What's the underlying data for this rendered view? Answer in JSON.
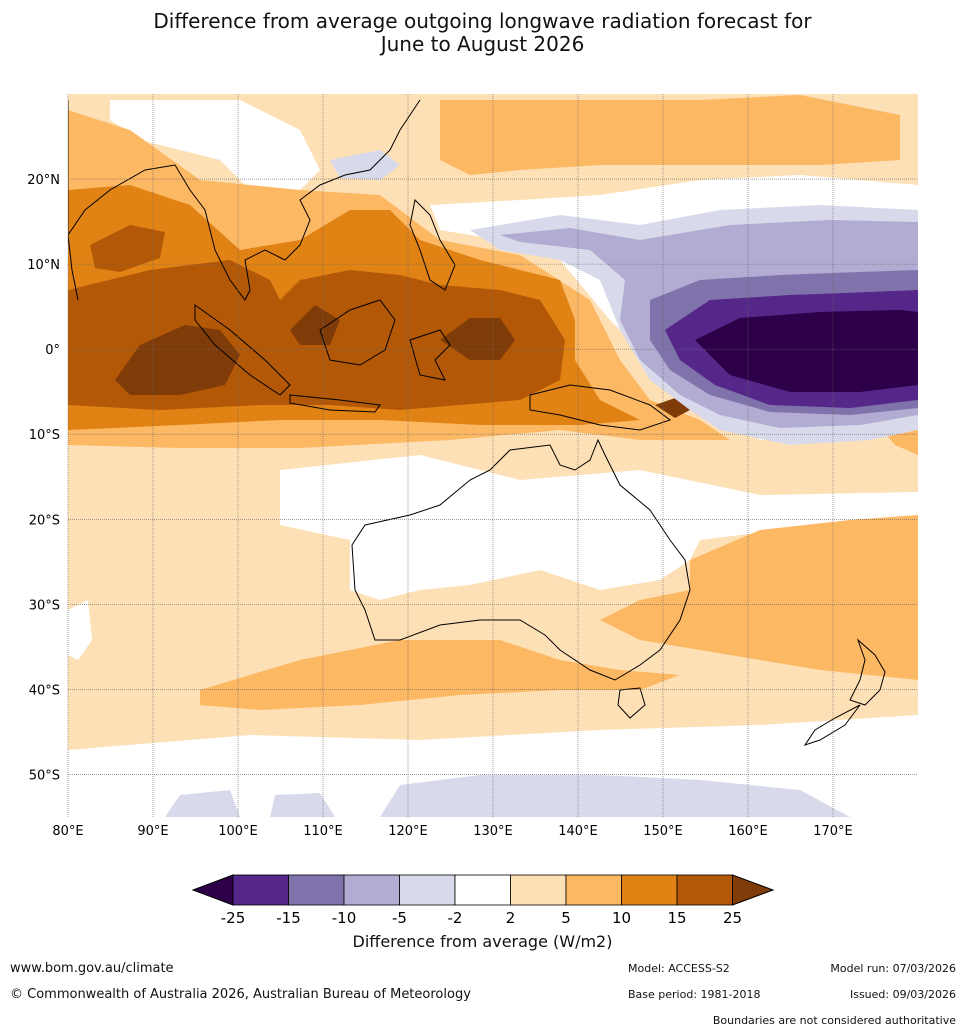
{
  "title": {
    "line1": "Difference from average outgoing longwave radiation forecast for",
    "line2": "June to August 2026"
  },
  "map": {
    "lon_labels": [
      "80°E",
      "90°E",
      "100°E",
      "110°E",
      "120°E",
      "130°E",
      "140°E",
      "150°E",
      "160°E",
      "170°E"
    ],
    "lat_labels": [
      "20°N",
      "10°N",
      "0°",
      "10°S",
      "20°S",
      "30°S",
      "40°S",
      "50°S"
    ],
    "lon_range_deg": [
      80,
      180
    ],
    "lat_range_deg": [
      -55,
      30
    ]
  },
  "legend": {
    "title": "Difference from average (W/m2)",
    "ticks": [
      "-25",
      "-15",
      "-10",
      "-5",
      "-2",
      "2",
      "5",
      "10",
      "15",
      "25"
    ],
    "colors": {
      "lt_-25": "#2d0049",
      "-25_-15": "#542789",
      "-15_-10": "#8073ac",
      "-10_-5": "#b2abd2",
      "-5_-2": "#d8daeb",
      "-2_2": "#ffffff",
      "2_5": "#fee0b6",
      "5_10": "#fdb863",
      "10_15": "#e08214",
      "15_25": "#b35806",
      "gt_25": "#7f3b08"
    }
  },
  "footer": {
    "url": "www.bom.gov.au/climate",
    "copyright": "© Commonwealth of Australia 2026, Australian Bureau of Meteorology",
    "model": "Model: ACCESS-S2",
    "base_period": "Base period: 1981-2018",
    "model_run": "Model run: 07/03/2026",
    "issued": "Issued: 09/03/2026",
    "disclaimer": "Boundaries are not considered authoritative"
  }
}
